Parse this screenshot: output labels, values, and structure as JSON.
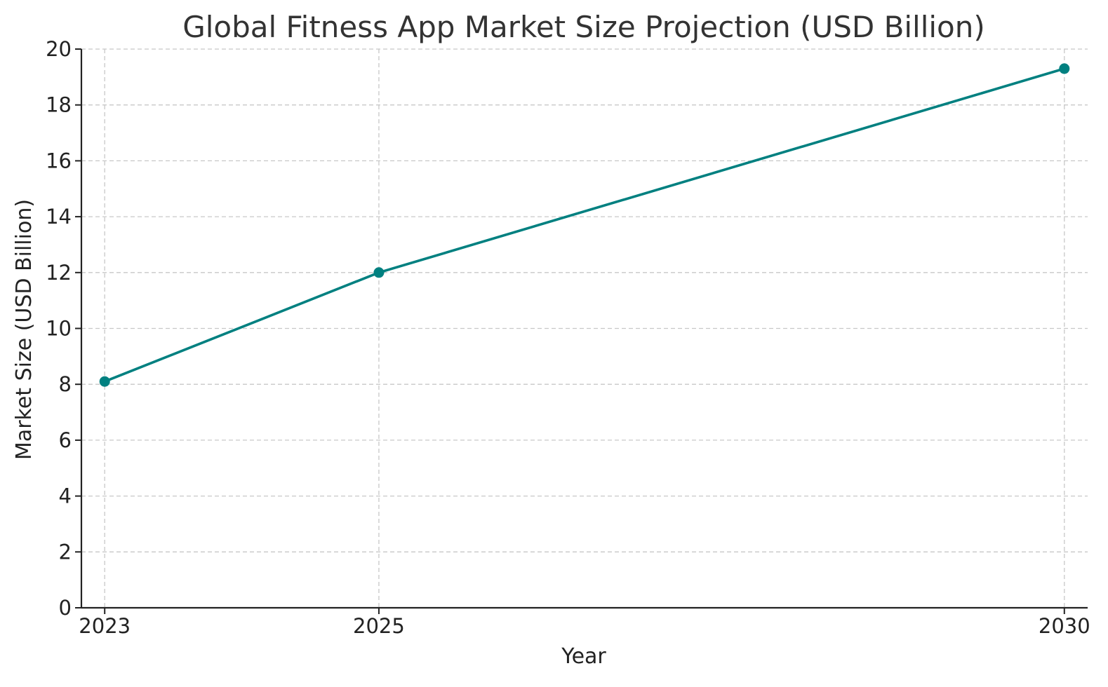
{
  "chart_data": {
    "type": "line",
    "title": "Global Fitness App Market Size Projection (USD Billion)",
    "xlabel": "Year",
    "ylabel": "Market Size (USD Billion)",
    "x": [
      2023,
      2025,
      2030
    ],
    "x_tick_labels": [
      "2023",
      "2025",
      "2030"
    ],
    "y_ticks": [
      0,
      2,
      4,
      6,
      8,
      10,
      12,
      14,
      16,
      18,
      20
    ],
    "ylim": [
      0,
      20
    ],
    "xlim": [
      2022.83,
      2030.17
    ],
    "grid": true,
    "series": [
      {
        "values": [
          8.1,
          12.0,
          19.3
        ],
        "color": "#008080",
        "marker": "circle"
      }
    ]
  }
}
